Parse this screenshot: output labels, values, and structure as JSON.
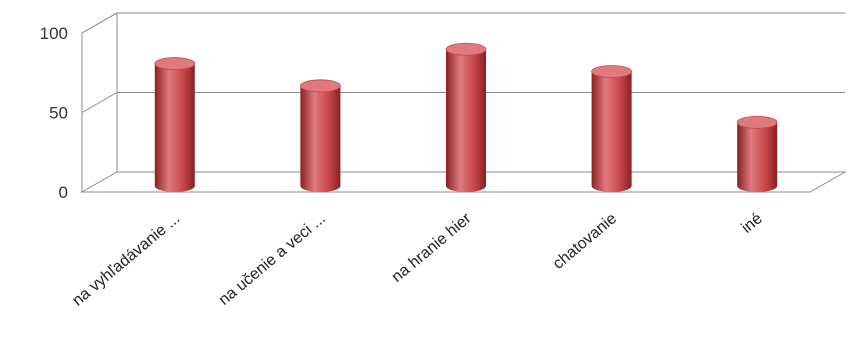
{
  "chart_data": {
    "type": "bar",
    "categories": [
      "na vyhľadávanie ...",
      "na učenie a veci ...",
      "na hranie hier",
      "chatovanie",
      "iné"
    ],
    "values": [
      77,
      63,
      86,
      72,
      40
    ],
    "ylim": [
      0,
      100
    ],
    "yticks": [
      0,
      50,
      100
    ],
    "grid": true,
    "legend": "none",
    "style": "3d-cylinder",
    "colors": {
      "bar": "#c8484a",
      "bar_dark": "#8a2022",
      "bar_light": "#e07a7c",
      "grid": "#8c8c8c"
    }
  }
}
